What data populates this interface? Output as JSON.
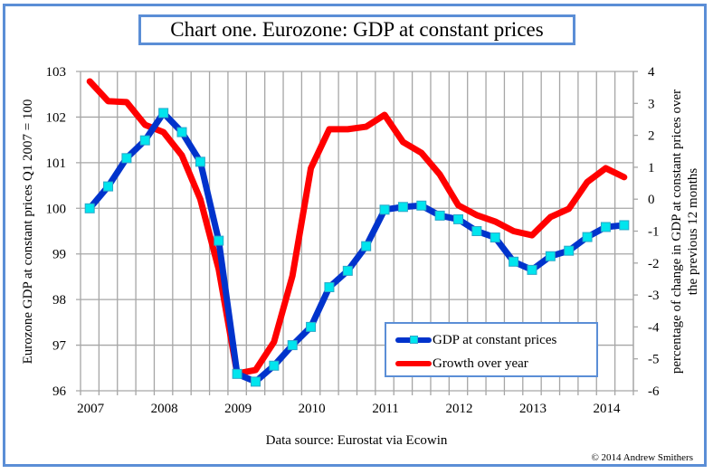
{
  "chart_data": {
    "type": "line",
    "title": "Chart one. Eurozone: GDP at constant prices",
    "source": "Data source: Eurostat via Ecowin",
    "copyright": "© 2014 Andrew Smithers",
    "x_tick_labels": [
      "2007",
      "2008",
      "2009",
      "2010",
      "2011",
      "2012",
      "2013",
      "2014"
    ],
    "categories": [
      "2007Q1",
      "2007Q2",
      "2007Q3",
      "2007Q4",
      "2008Q1",
      "2008Q2",
      "2008Q3",
      "2008Q4",
      "2009Q1",
      "2009Q2",
      "2009Q3",
      "2009Q4",
      "2010Q1",
      "2010Q2",
      "2010Q3",
      "2010Q4",
      "2011Q1",
      "2011Q2",
      "2011Q3",
      "2011Q4",
      "2012Q1",
      "2012Q2",
      "2012Q3",
      "2012Q4",
      "2013Q1",
      "2013Q2",
      "2013Q3",
      "2013Q4",
      "2014Q1",
      "2014Q2"
    ],
    "y_left": {
      "label": "Eurozone GDP at constant prices Q1 2007 = 100",
      "range": [
        96,
        103
      ],
      "ticks": [
        "96",
        "97",
        "98",
        "99",
        "100",
        "101",
        "102",
        "103"
      ]
    },
    "y_right": {
      "label_line1": "percentage of change in GDP at constant prices over",
      "label_line2": "the previous 12 months",
      "range": [
        -6,
        4
      ],
      "ticks": [
        "-6",
        "-5",
        "-4",
        "-3",
        "-2",
        "-1",
        "0",
        "1",
        "2",
        "3",
        "4"
      ]
    },
    "grid": true,
    "legend_position": "bottom-right",
    "series": [
      {
        "name": "GDP at constant prices",
        "axis": "left",
        "color": "#0033cc",
        "marker_color": "#00e5ee",
        "values": [
          100.0,
          100.48,
          101.1,
          101.49,
          102.09,
          101.67,
          101.02,
          99.29,
          96.37,
          96.2,
          96.55,
          97.0,
          97.4,
          98.27,
          98.63,
          99.17,
          99.97,
          100.03,
          100.06,
          99.84,
          99.76,
          99.5,
          99.36,
          98.83,
          98.65,
          98.95,
          99.07,
          99.37,
          99.59,
          99.63
        ]
      },
      {
        "name": "Growth over year",
        "axis": "right",
        "color": "#ff0000",
        "values": [
          3.69,
          3.07,
          3.04,
          2.33,
          2.1,
          1.37,
          0.0,
          -2.2,
          -5.46,
          -5.35,
          -4.47,
          -2.4,
          0.97,
          2.19,
          2.19,
          2.27,
          2.64,
          1.79,
          1.45,
          0.77,
          -0.19,
          -0.5,
          -0.7,
          -1.0,
          -1.13,
          -0.56,
          -0.3,
          0.54,
          0.97,
          0.69
        ]
      }
    ]
  },
  "colors": {
    "frame_border": "#5b8ed6",
    "grid": "#a6a6a6"
  }
}
